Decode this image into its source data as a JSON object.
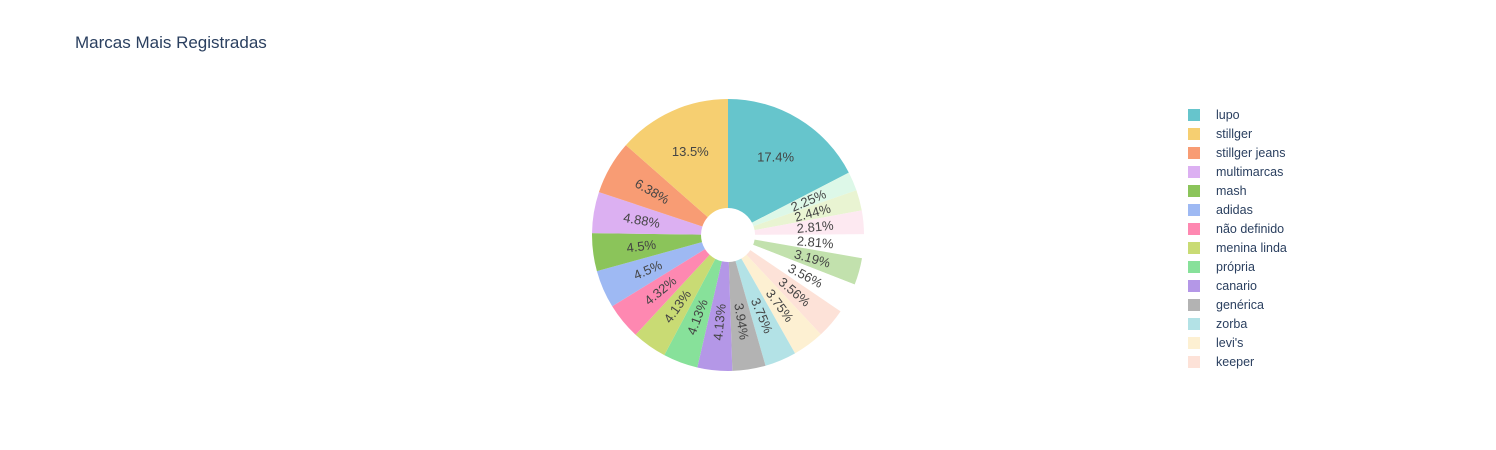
{
  "chart_data": {
    "type": "pie",
    "title": "Marcas Mais Registradas",
    "hole": true,
    "legend_position": "right",
    "direction": "clockwise",
    "slices": [
      {
        "label": "lupo",
        "value": 17.4,
        "text": "17.4%",
        "color": "#66c5cc",
        "legend": true
      },
      {
        "label": "",
        "value": 2.25,
        "text": "2.25%",
        "color": "#ddf8e8",
        "legend": false
      },
      {
        "label": "",
        "value": 2.44,
        "text": "2.44%",
        "color": "#e9f4d2",
        "legend": false
      },
      {
        "label": "",
        "value": 2.81,
        "text": "2.81%",
        "color": "#fde9f1",
        "legend": false
      },
      {
        "label": "",
        "value": 2.81,
        "text": "2.81%",
        "color": "#ffffff",
        "legend": false
      },
      {
        "label": "",
        "value": 3.19,
        "text": "3.19%",
        "color": "#c2e1ad",
        "legend": false
      },
      {
        "label": "",
        "value": 3.56,
        "text": "3.56%",
        "color": "#ffffff",
        "legend": false
      },
      {
        "label": "keeper",
        "value": 3.56,
        "text": "3.56%",
        "color": "#fde2d8",
        "legend": true
      },
      {
        "label": "levi's",
        "value": 3.75,
        "text": "3.75%",
        "color": "#fdf0d2",
        "legend": true
      },
      {
        "label": "zorba",
        "value": 3.75,
        "text": "3.75%",
        "color": "#b3e2e6",
        "legend": true
      },
      {
        "label": "genérica",
        "value": 3.94,
        "text": "3.94%",
        "color": "#b3b3b3",
        "legend": true
      },
      {
        "label": "canario",
        "value": 4.13,
        "text": "4.13%",
        "color": "#b497e7",
        "legend": true
      },
      {
        "label": "própria",
        "value": 4.13,
        "text": "4.13%",
        "color": "#87e19a",
        "legend": true
      },
      {
        "label": "menina linda",
        "value": 4.13,
        "text": "4.13%",
        "color": "#c9db74",
        "legend": true
      },
      {
        "label": "não definido",
        "value": 4.32,
        "text": "4.32%",
        "color": "#fe88b1",
        "legend": true
      },
      {
        "label": "adidas",
        "value": 4.5,
        "text": "4.5%",
        "color": "#9eb9f3",
        "legend": true
      },
      {
        "label": "mash",
        "value": 4.5,
        "text": "4.5%",
        "color": "#8bc45a",
        "legend": true
      },
      {
        "label": "multimarcas",
        "value": 4.88,
        "text": "4.88%",
        "color": "#dcb0f2",
        "legend": true
      },
      {
        "label": "stillger jeans",
        "value": 6.38,
        "text": "6.38%",
        "color": "#f89c74",
        "legend": true
      },
      {
        "label": "stillger",
        "value": 13.5,
        "text": "13.5%",
        "color": "#f6cf71",
        "legend": true
      }
    ],
    "legend_order": [
      "lupo",
      "stillger",
      "stillger jeans",
      "multimarcas",
      "mash",
      "adidas",
      "não definido",
      "menina linda",
      "própria",
      "canario",
      "genérica",
      "zorba",
      "levi's",
      "keeper"
    ]
  }
}
